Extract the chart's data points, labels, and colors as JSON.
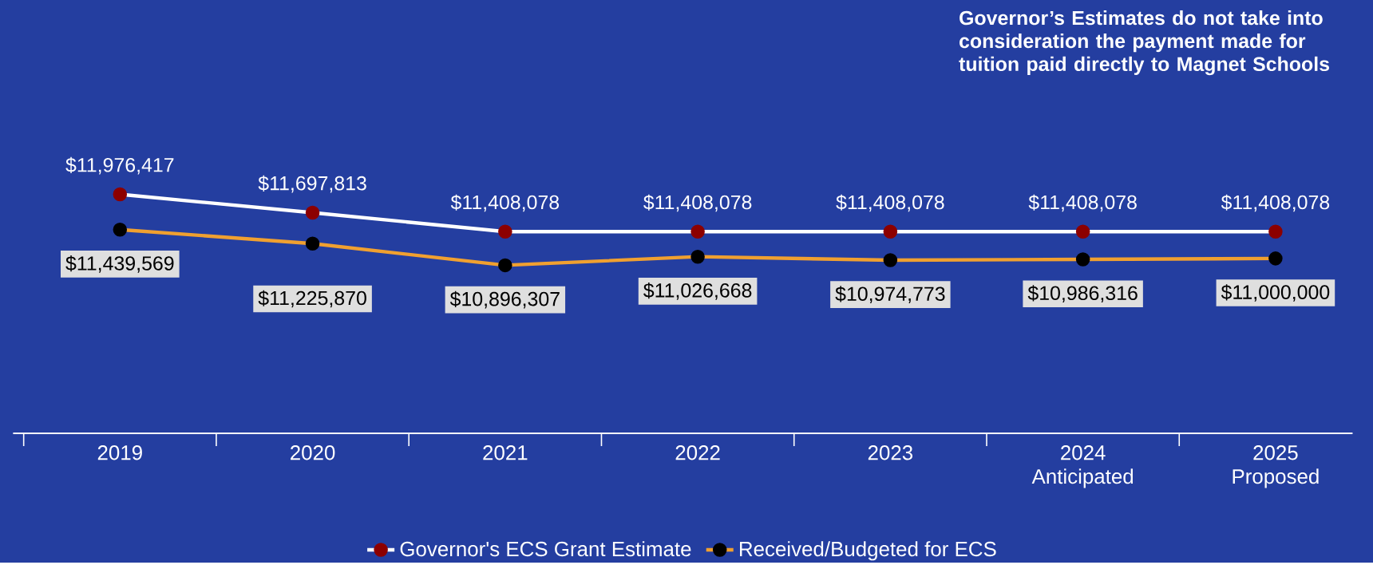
{
  "chart_data": {
    "type": "line",
    "categories": [
      "2019",
      "2020",
      "2021",
      "2022",
      "2023",
      "2024 Anticipated",
      "2025 Proposed"
    ],
    "series": [
      {
        "name": "Governor's ECS Grant Estimate",
        "color": "#ffffff",
        "values": [
          11976417,
          11697813,
          11408078,
          11408078,
          11408078,
          11408078,
          11408078
        ],
        "value_labels": [
          "$11,976,417",
          "$11,697,813",
          "$11,408,078",
          "$11,408,078",
          "$11,408,078",
          "$11,408,078",
          "$11,408,078"
        ]
      },
      {
        "name": "Received/Budgeted for ECS",
        "color": "#f0a030",
        "values": [
          11439569,
          11225870,
          10896307,
          11026668,
          10974773,
          10986316,
          11000000
        ],
        "value_labels": [
          "$11,439,569",
          "$11,225,870",
          "$10,896,307",
          "$11,026,668",
          "$10,974,773",
          "$10,986,316",
          "$11,000,000"
        ]
      }
    ],
    "annotations": [
      "Governor’s Estimates do not take into consideration the payment made for tuition paid directly to Magnet Schools"
    ],
    "legend": "bottom",
    "marker": "circle",
    "line_style": "solid",
    "grid": false
  }
}
